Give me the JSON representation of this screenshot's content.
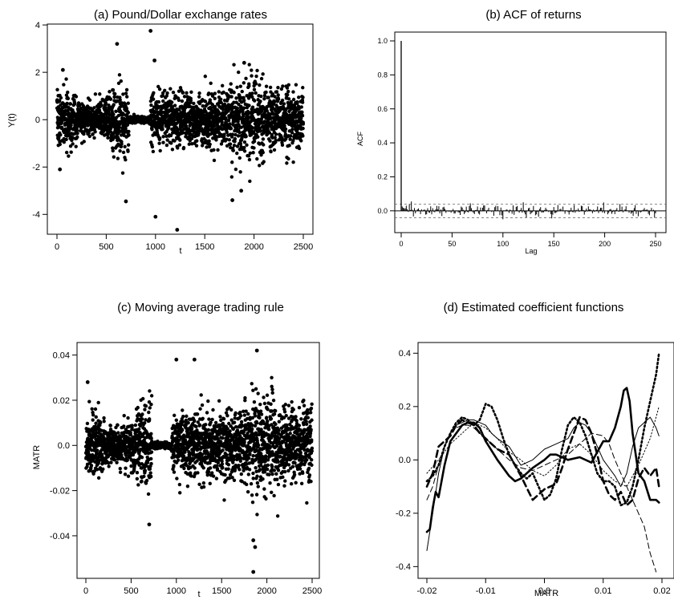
{
  "panels": {
    "a": {
      "title": "(a) Pound/Dollar exchange rates",
      "xlabel": "t",
      "ylabel": "Y(t)"
    },
    "b": {
      "title": "(b) ACF of returns",
      "xlabel": "Lag",
      "ylabel": "ACF"
    },
    "c": {
      "title": "(c) Moving average trading rule",
      "xlabel": "t",
      "ylabel": "MATR"
    },
    "d": {
      "title": "(d) Estimated coefficient functions",
      "xlabel": "MATR",
      "ylabel": ""
    }
  },
  "chart_data": [
    {
      "id": "a",
      "type": "scatter",
      "title": "(a) Pound/Dollar exchange rates",
      "xlabel": "t",
      "ylabel": "Y(t)",
      "xlim": [
        0,
        2500
      ],
      "ylim": [
        -4.6,
        3.8
      ],
      "xticks": [
        0,
        500,
        1000,
        1500,
        2000,
        2500
      ],
      "yticks": [
        -4,
        -2,
        0,
        2,
        4
      ],
      "n_points": 2500,
      "point_color": "#000000",
      "notable_points": [
        {
          "x": 30,
          "y": -2.1
        },
        {
          "x": 60,
          "y": 2.1
        },
        {
          "x": 610,
          "y": 3.2
        },
        {
          "x": 700,
          "y": -3.45
        },
        {
          "x": 950,
          "y": 3.75
        },
        {
          "x": 1000,
          "y": -4.1
        },
        {
          "x": 1220,
          "y": -4.65
        },
        {
          "x": 1780,
          "y": -3.4
        },
        {
          "x": 1870,
          "y": -3.0
        },
        {
          "x": 1900,
          "y": 2.4
        },
        {
          "x": 990,
          "y": 2.5
        }
      ]
    },
    {
      "id": "b",
      "type": "bar",
      "title": "(b) ACF of returns",
      "xlabel": "Lag",
      "ylabel": "ACF",
      "xlim": [
        0,
        250
      ],
      "ylim": [
        -0.1,
        1.0
      ],
      "xticks": [
        0,
        50,
        100,
        150,
        200,
        250
      ],
      "yticks": [
        0.0,
        0.2,
        0.4,
        0.6,
        0.8,
        1.0
      ],
      "lag0": 1.0,
      "confidence_band": [
        -0.04,
        0.04
      ],
      "approx_abs_max_other_lags": 0.06
    },
    {
      "id": "c",
      "type": "scatter",
      "title": "(c) Moving average trading rule",
      "xlabel": "t",
      "ylabel": "MATR",
      "xlim": [
        0,
        2500
      ],
      "ylim": [
        -0.056,
        0.042
      ],
      "xticks": [
        0,
        500,
        1000,
        1500,
        2000,
        2500
      ],
      "yticks": [
        -0.04,
        -0.02,
        0.0,
        0.02,
        0.04
      ],
      "n_points": 2500,
      "point_color": "#000000",
      "notable_points": [
        {
          "x": 20,
          "y": 0.028
        },
        {
          "x": 1000,
          "y": 0.038
        },
        {
          "x": 1200,
          "y": 0.038
        },
        {
          "x": 1850,
          "y": -0.042
        },
        {
          "x": 1870,
          "y": -0.045
        },
        {
          "x": 1850,
          "y": -0.056
        },
        {
          "x": 1890,
          "y": 0.042
        },
        {
          "x": 700,
          "y": -0.035
        }
      ]
    },
    {
      "id": "d",
      "type": "line",
      "title": "(d) Estimated coefficient functions",
      "xlabel": "MATR",
      "ylabel": "",
      "xlim": [
        -0.02,
        0.02
      ],
      "ylim": [
        -0.42,
        0.41
      ],
      "xticks": [
        -0.02,
        -0.01,
        0.0,
        0.01,
        0.02
      ],
      "xticklabels": [
        "-0.02",
        "-0.01",
        "0.0",
        "0.01",
        "0.02"
      ],
      "yticks": [
        -0.4,
        -0.2,
        0.0,
        0.2,
        0.4
      ],
      "series": [
        {
          "style": "thick-solid",
          "x": [
            -0.02,
            -0.0195,
            -0.019,
            -0.0185,
            -0.018,
            -0.017,
            -0.016,
            -0.015,
            -0.014,
            -0.013,
            -0.012,
            -0.011,
            -0.01,
            -0.008,
            -0.006,
            -0.005,
            -0.004,
            -0.002,
            0.0,
            0.001,
            0.002,
            0.004,
            0.006,
            0.008,
            0.01,
            0.011,
            0.012,
            0.013,
            0.0135,
            0.014,
            0.0145,
            0.015,
            0.016,
            0.017,
            0.018,
            0.019,
            0.0195
          ],
          "y": [
            -0.27,
            -0.26,
            -0.18,
            -0.12,
            -0.14,
            -0.02,
            0.07,
            0.1,
            0.13,
            0.14,
            0.14,
            0.12,
            0.07,
            0.0,
            -0.06,
            -0.08,
            -0.07,
            -0.03,
            0.0,
            0.02,
            0.02,
            0.0,
            0.01,
            -0.01,
            0.07,
            0.07,
            0.12,
            0.2,
            0.26,
            0.27,
            0.22,
            0.1,
            -0.05,
            -0.08,
            -0.15,
            -0.15,
            -0.16
          ]
        },
        {
          "style": "thick-dashed",
          "x": [
            -0.02,
            -0.019,
            -0.018,
            -0.017,
            -0.016,
            -0.015,
            -0.014,
            -0.013,
            -0.012,
            -0.011,
            -0.01,
            -0.008,
            -0.006,
            -0.004,
            -0.002,
            0.0,
            0.002,
            0.003,
            0.004,
            0.005,
            0.006,
            0.007,
            0.008,
            0.009,
            0.01,
            0.011,
            0.012,
            0.013,
            0.014,
            0.015,
            0.016,
            0.017,
            0.018,
            0.019,
            0.0195
          ],
          "y": [
            -0.1,
            -0.05,
            0.05,
            0.07,
            0.09,
            0.13,
            0.15,
            0.14,
            0.13,
            0.1,
            0.08,
            0.04,
            0.02,
            -0.06,
            -0.15,
            -0.11,
            -0.09,
            -0.03,
            0.04,
            0.1,
            0.16,
            0.15,
            0.1,
            0.02,
            -0.08,
            -0.13,
            -0.15,
            -0.12,
            -0.17,
            -0.15,
            -0.07,
            -0.03,
            -0.06,
            -0.03,
            -0.1
          ]
        },
        {
          "style": "dotted",
          "x": [
            -0.02,
            -0.019,
            -0.018,
            -0.017,
            -0.016,
            -0.015,
            -0.014,
            -0.013,
            -0.012,
            -0.011,
            -0.01,
            -0.009,
            -0.008,
            -0.007,
            -0.006,
            -0.005,
            -0.004,
            -0.003,
            -0.002,
            -0.001,
            0.0,
            0.001,
            0.002,
            0.003,
            0.004,
            0.005,
            0.006,
            0.007,
            0.008,
            0.009,
            0.01,
            0.011,
            0.012,
            0.013,
            0.014,
            0.015,
            0.016,
            0.017,
            0.018,
            0.019,
            0.0195
          ],
          "y": [
            -0.08,
            -0.06,
            -0.02,
            0.05,
            0.1,
            0.14,
            0.16,
            0.15,
            0.13,
            0.15,
            0.21,
            0.2,
            0.15,
            0.08,
            0.02,
            -0.02,
            -0.05,
            -0.07,
            -0.05,
            -0.1,
            -0.15,
            -0.13,
            -0.07,
            0.04,
            0.13,
            0.16,
            0.14,
            0.09,
            0.02,
            -0.05,
            -0.08,
            -0.08,
            -0.1,
            -0.17,
            -0.16,
            -0.1,
            0.0,
            0.12,
            0.22,
            0.32,
            0.4
          ]
        },
        {
          "style": "thin-solid",
          "x": [
            -0.02,
            -0.019,
            -0.018,
            -0.017,
            -0.016,
            -0.015,
            -0.014,
            -0.013,
            -0.012,
            -0.011,
            -0.01,
            -0.009,
            -0.008,
            -0.006,
            -0.004,
            -0.002,
            0.0,
            0.002,
            0.004,
            0.005,
            0.006,
            0.007,
            0.008,
            0.009,
            0.01,
            0.011,
            0.012,
            0.013,
            0.014,
            0.015,
            0.016,
            0.017,
            0.018,
            0.019,
            0.0195
          ],
          "y": [
            -0.34,
            -0.2,
            -0.05,
            0.05,
            0.1,
            0.13,
            0.14,
            0.15,
            0.15,
            0.14,
            0.13,
            0.1,
            0.08,
            0.05,
            -0.02,
            0.0,
            0.04,
            0.06,
            0.08,
            0.12,
            0.14,
            0.13,
            0.1,
            0.05,
            0.0,
            -0.03,
            -0.06,
            -0.1,
            -0.05,
            0.05,
            0.12,
            0.14,
            0.16,
            0.12,
            0.09
          ]
        },
        {
          "style": "thin-dashed",
          "x": [
            -0.02,
            -0.019,
            -0.018,
            -0.017,
            -0.016,
            -0.015,
            -0.014,
            -0.013,
            -0.012,
            -0.011,
            -0.01,
            -0.008,
            -0.006,
            -0.004,
            -0.002,
            0.0,
            0.002,
            0.004,
            0.006,
            0.008,
            0.01,
            0.011,
            0.012,
            0.013,
            0.014,
            0.015,
            0.016,
            0.017,
            0.018,
            0.019
          ],
          "y": [
            -0.15,
            -0.1,
            -0.02,
            0.05,
            0.1,
            0.12,
            0.13,
            0.13,
            0.12,
            0.1,
            0.08,
            0.04,
            0.0,
            -0.03,
            -0.04,
            -0.02,
            0.0,
            0.02,
            0.06,
            0.1,
            0.09,
            0.06,
            0.0,
            -0.05,
            -0.1,
            -0.15,
            -0.2,
            -0.25,
            -0.35,
            -0.42
          ]
        },
        {
          "style": "thin-dotted",
          "x": [
            -0.02,
            -0.018,
            -0.016,
            -0.014,
            -0.012,
            -0.01,
            -0.008,
            -0.006,
            -0.004,
            -0.002,
            0.0,
            0.002,
            0.004,
            0.006,
            0.008,
            0.01,
            0.012,
            0.014,
            0.016,
            0.018,
            0.0195
          ],
          "y": [
            -0.05,
            0.0,
            0.06,
            0.1,
            0.14,
            0.12,
            0.08,
            0.03,
            0.0,
            -0.04,
            -0.06,
            -0.02,
            0.04,
            0.06,
            0.02,
            -0.04,
            -0.08,
            -0.1,
            -0.02,
            0.08,
            0.2
          ]
        }
      ]
    }
  ]
}
